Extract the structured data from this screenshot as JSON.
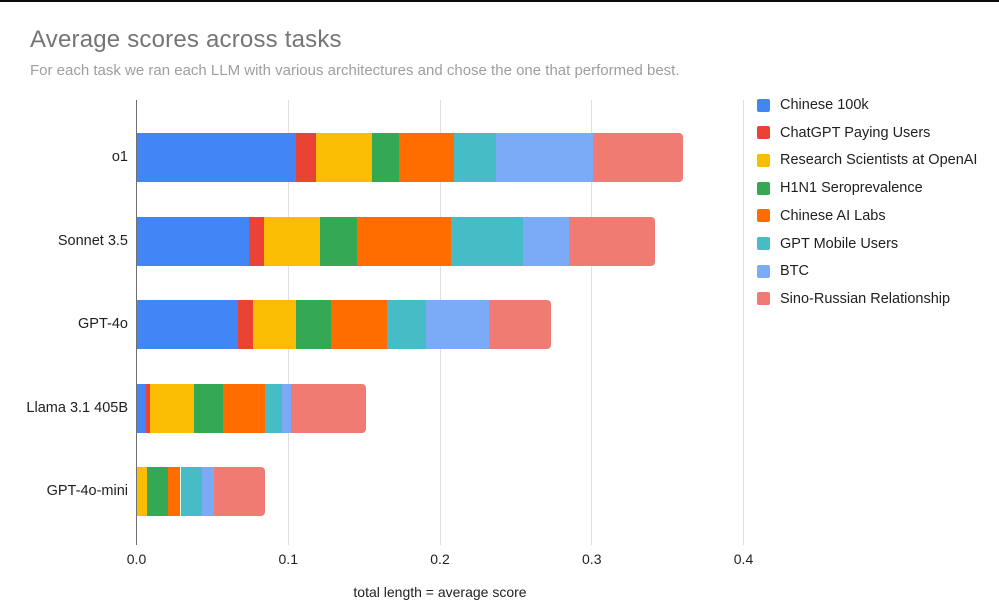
{
  "header": {
    "title": "Average scores across tasks",
    "subtitle": "For each task we ran each LLM with various architectures and chose the one that performed best."
  },
  "chart_data": {
    "type": "bar",
    "orientation": "horizontal",
    "stacked": true,
    "grid": true,
    "legend_position": "right",
    "categories": [
      "o1",
      "Sonnet 3.5",
      "GPT-4o",
      "Llama 3.1 405B",
      "GPT-4o-mini"
    ],
    "series": [
      {
        "name": "Chinese 100k",
        "color": "#4285F4",
        "values": [
          0.105,
          0.074,
          0.067,
          0.006,
          0.0
        ]
      },
      {
        "name": "ChatGPT Paying Users",
        "color": "#EA4335",
        "values": [
          0.013,
          0.01,
          0.01,
          0.003,
          0.0
        ]
      },
      {
        "name": "Research Scientists at OpenAI",
        "color": "#FBBC04",
        "values": [
          0.037,
          0.037,
          0.028,
          0.029,
          0.007
        ]
      },
      {
        "name": "H1N1 Seroprevalence",
        "color": "#34A853",
        "values": [
          0.018,
          0.024,
          0.023,
          0.019,
          0.014
        ]
      },
      {
        "name": "Chinese AI Labs",
        "color": "#FF6D01",
        "values": [
          0.036,
          0.062,
          0.037,
          0.028,
          0.008
        ]
      },
      {
        "name": "GPT Mobile Users",
        "color": "#46BDC6",
        "values": [
          0.028,
          0.048,
          0.026,
          0.011,
          0.014
        ]
      },
      {
        "name": "BTC",
        "color": "#7BAAF7",
        "values": [
          0.064,
          0.03,
          0.041,
          0.006,
          0.008
        ]
      },
      {
        "name": "Sino-Russian Relationship",
        "color": "#F07B72",
        "values": [
          0.059,
          0.057,
          0.041,
          0.049,
          0.034
        ]
      }
    ],
    "totals": [
      0.36,
      0.342,
      0.273,
      0.151,
      0.085
    ],
    "x_axis": {
      "label": "total length = average score",
      "ticks": [
        0.0,
        0.1,
        0.2,
        0.3,
        0.4
      ],
      "tick_labels": [
        "0.0",
        "0.1",
        "0.2",
        "0.3",
        "0.4"
      ],
      "range": [
        0,
        0.4
      ]
    }
  }
}
